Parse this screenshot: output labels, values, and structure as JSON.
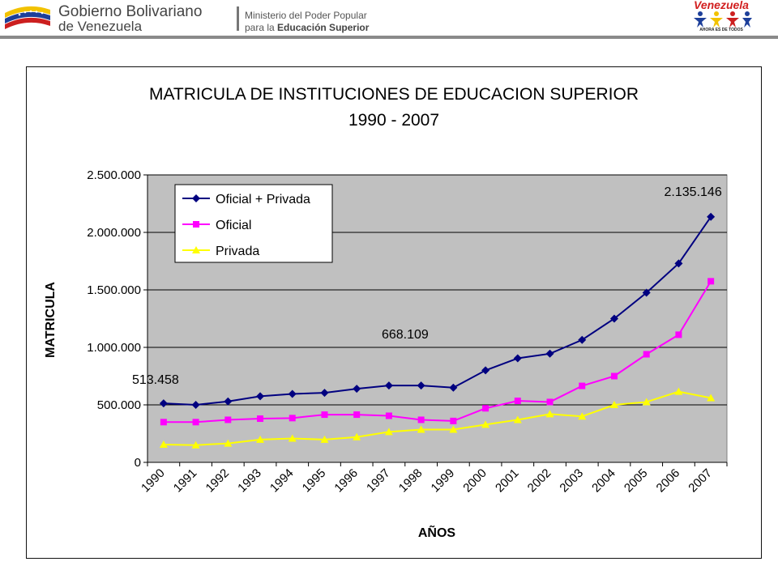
{
  "header": {
    "gov_brand_bold": "Gobierno Bolivariano",
    "gov_brand_rest": "de Venezuela",
    "ministry_line1": "Ministerio del Poder Popular",
    "ministry_line2_prefix": "para la",
    "ministry_line2_bold": "Educación Superior",
    "right_logo_word": "Venezuela",
    "right_logo_slogan": "AHORA ES DE TODOS"
  },
  "chart_data": {
    "type": "line",
    "title": "MATRICULA DE INSTITUCIONES DE EDUCACION SUPERIOR",
    "subtitle": "1990 - 2007",
    "xlabel": "AÑOS",
    "ylabel": "MATRICULA",
    "categories": [
      "1990",
      "1991",
      "1992",
      "1993",
      "1994",
      "1995",
      "1996",
      "1997",
      "1998",
      "1999",
      "2000",
      "2001",
      "2002",
      "2003",
      "2004",
      "2005",
      "2006",
      "2007"
    ],
    "ylim": [
      0,
      2500000
    ],
    "yticks": [
      0,
      500000,
      1000000,
      1500000,
      2000000,
      2500000
    ],
    "ytick_labels": [
      "0",
      "500.000",
      "1.000.000",
      "1.500.000",
      "2.000.000",
      "2.500.000"
    ],
    "grid": "horizontal",
    "plot_background": "#c0c0c0",
    "legend_position": "top-left",
    "series": [
      {
        "name": "Oficial + Privada",
        "color": "#000080",
        "marker": "diamond",
        "values": [
          513458,
          500000,
          530000,
          575000,
          595000,
          605000,
          640000,
          668109,
          668000,
          650000,
          800000,
          905000,
          945000,
          1065000,
          1250000,
          1475000,
          1730000,
          2135146
        ]
      },
      {
        "name": "Oficial",
        "color": "#ff00ff",
        "marker": "square",
        "values": [
          350000,
          350000,
          370000,
          380000,
          385000,
          415000,
          415000,
          405000,
          370000,
          360000,
          470000,
          535000,
          525000,
          665000,
          750000,
          940000,
          1110000,
          1575000
        ]
      },
      {
        "name": "Privada",
        "color": "#ffff00",
        "marker": "triangle",
        "values": [
          155000,
          150000,
          165000,
          198000,
          208000,
          198000,
          220000,
          265000,
          285000,
          285000,
          328000,
          370000,
          420000,
          400000,
          500000,
          525000,
          615000,
          560000
        ]
      }
    ],
    "annotations": [
      {
        "text": "513.458",
        "category": "1990",
        "series": 0
      },
      {
        "text": "668.109",
        "category": "1997",
        "series": 0
      },
      {
        "text": "2.135.146",
        "category": "2007",
        "series": 0
      }
    ]
  }
}
